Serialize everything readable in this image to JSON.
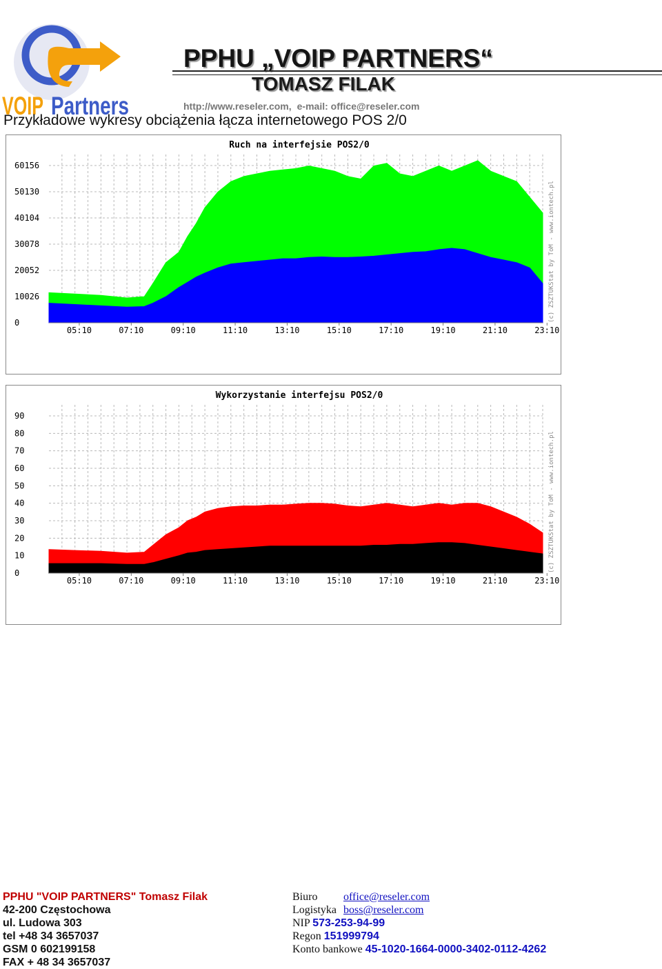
{
  "header": {
    "logo_alt": "VOIP Partners",
    "title": "PPHU „VOIP PARTNERS“",
    "name": "TOMASZ FILAK",
    "url": "http://www.reseler.com,",
    "email": "e-mail: office@reseler.com"
  },
  "subtitle": "Przykładowe wykresy obciążenia łącza internetowego POS 2/0",
  "chart_data": [
    {
      "type": "area",
      "title": "Ruch na interfejsie POS2/0",
      "watermark": "(c) ZSZTUKStat by ToM - www.iontech.pl",
      "x_ticks": [
        "05:10",
        "07:10",
        "09:10",
        "11:10",
        "13:10",
        "15:10",
        "17:10",
        "19:10",
        "21:10",
        "23:10"
      ],
      "y_ticks": [
        0,
        10026,
        20052,
        30078,
        40104,
        50130,
        60156
      ],
      "ylim": [
        0,
        60156
      ],
      "x": [
        "04:00",
        "05:00",
        "06:00",
        "07:00",
        "07:40",
        "08:00",
        "08:30",
        "09:00",
        "09:20",
        "09:40",
        "10:00",
        "10:30",
        "11:00",
        "11:30",
        "12:00",
        "12:30",
        "13:00",
        "13:30",
        "14:00",
        "14:30",
        "15:00",
        "15:30",
        "16:00",
        "16:30",
        "17:00",
        "17:30",
        "18:00",
        "18:30",
        "19:00",
        "19:30",
        "20:00",
        "20:30",
        "21:00",
        "21:30",
        "22:00",
        "22:30",
        "23:00"
      ],
      "series": [
        {
          "color": "#00ff00",
          "values": [
            11500,
            11000,
            10500,
            9500,
            10000,
            15000,
            23000,
            27000,
            33000,
            38000,
            44000,
            50000,
            54000,
            56000,
            57000,
            58000,
            58500,
            59000,
            60000,
            59000,
            58000,
            56000,
            55000,
            60000,
            61000,
            57000,
            56000,
            58000,
            60000,
            58000,
            60000,
            62000,
            58000,
            56000,
            54000,
            48000,
            42000
          ]
        },
        {
          "color": "#0000ff",
          "values": [
            7500,
            7000,
            6500,
            6000,
            6200,
            7500,
            10000,
            13500,
            15500,
            17500,
            19000,
            21000,
            22500,
            23000,
            23500,
            24000,
            24500,
            24500,
            25000,
            25200,
            25000,
            25000,
            25200,
            25500,
            26000,
            26500,
            27000,
            27200,
            28000,
            28500,
            28000,
            26500,
            25000,
            24000,
            23000,
            21000,
            15000
          ]
        }
      ]
    },
    {
      "type": "area",
      "title": "Wykorzystanie interfejsu POS2/0",
      "watermark": "(c) ZSZTUKStat by ToM - www.iontech.pl",
      "x_ticks": [
        "05:10",
        "07:10",
        "09:10",
        "11:10",
        "13:10",
        "15:10",
        "17:10",
        "19:10",
        "21:10",
        "23:10"
      ],
      "y_ticks": [
        0,
        10,
        20,
        30,
        40,
        50,
        60,
        70,
        80,
        90
      ],
      "ylim": [
        0,
        90
      ],
      "x": [
        "04:00",
        "05:00",
        "06:00",
        "07:00",
        "07:40",
        "08:00",
        "08:30",
        "09:00",
        "09:20",
        "09:40",
        "10:00",
        "10:30",
        "11:00",
        "11:30",
        "12:00",
        "12:30",
        "13:00",
        "13:30",
        "14:00",
        "14:30",
        "15:00",
        "15:30",
        "16:00",
        "16:30",
        "17:00",
        "17:30",
        "18:00",
        "18:30",
        "19:00",
        "19:30",
        "20:00",
        "20:30",
        "21:00",
        "21:30",
        "22:00",
        "22:30",
        "23:00"
      ],
      "series": [
        {
          "color": "#ff0000",
          "values": [
            13.5,
            13,
            12.5,
            11.5,
            12,
            16,
            22,
            26,
            30,
            32,
            35,
            37,
            38,
            38.5,
            38.5,
            39,
            39,
            39.5,
            40,
            40,
            39.5,
            38.5,
            38,
            39,
            40,
            39,
            38,
            39,
            40,
            39,
            40,
            40,
            38,
            35,
            32,
            28,
            23
          ]
        },
        {
          "color": "#000000",
          "values": [
            5.5,
            5.5,
            5.5,
            5,
            5,
            6,
            8,
            10,
            11.5,
            12,
            13,
            13.5,
            14,
            14.5,
            15,
            15.5,
            15.5,
            15.5,
            15.5,
            15.5,
            15.5,
            15.5,
            15.5,
            16,
            16,
            16.5,
            16.5,
            17,
            17.5,
            17.5,
            17,
            16,
            15,
            14,
            13,
            12,
            11
          ]
        }
      ]
    }
  ],
  "footer": {
    "company": "PPHU \"VOIP PARTNERS\" Tomasz Filak",
    "city": "42-200 Częstochowa",
    "street": "ul. Ludowa 303",
    "tel": "tel +48 34 3657037",
    "gsm": "GSM 0 602199158",
    "fax": "FAX + 48 34 3657037",
    "biuro_label": "Biuro",
    "biuro_email": "office@reseler.com",
    "logistyka_label": "Logistyka",
    "logistyka_email": "boss@reseler.com",
    "nip_label": "NIP",
    "nip": "573-253-94-99",
    "regon_label": "Regon",
    "regon": "151999794",
    "konto_label": "Konto bankowe",
    "konto": "45-1020-1664-0000-3402-0112-4262"
  }
}
